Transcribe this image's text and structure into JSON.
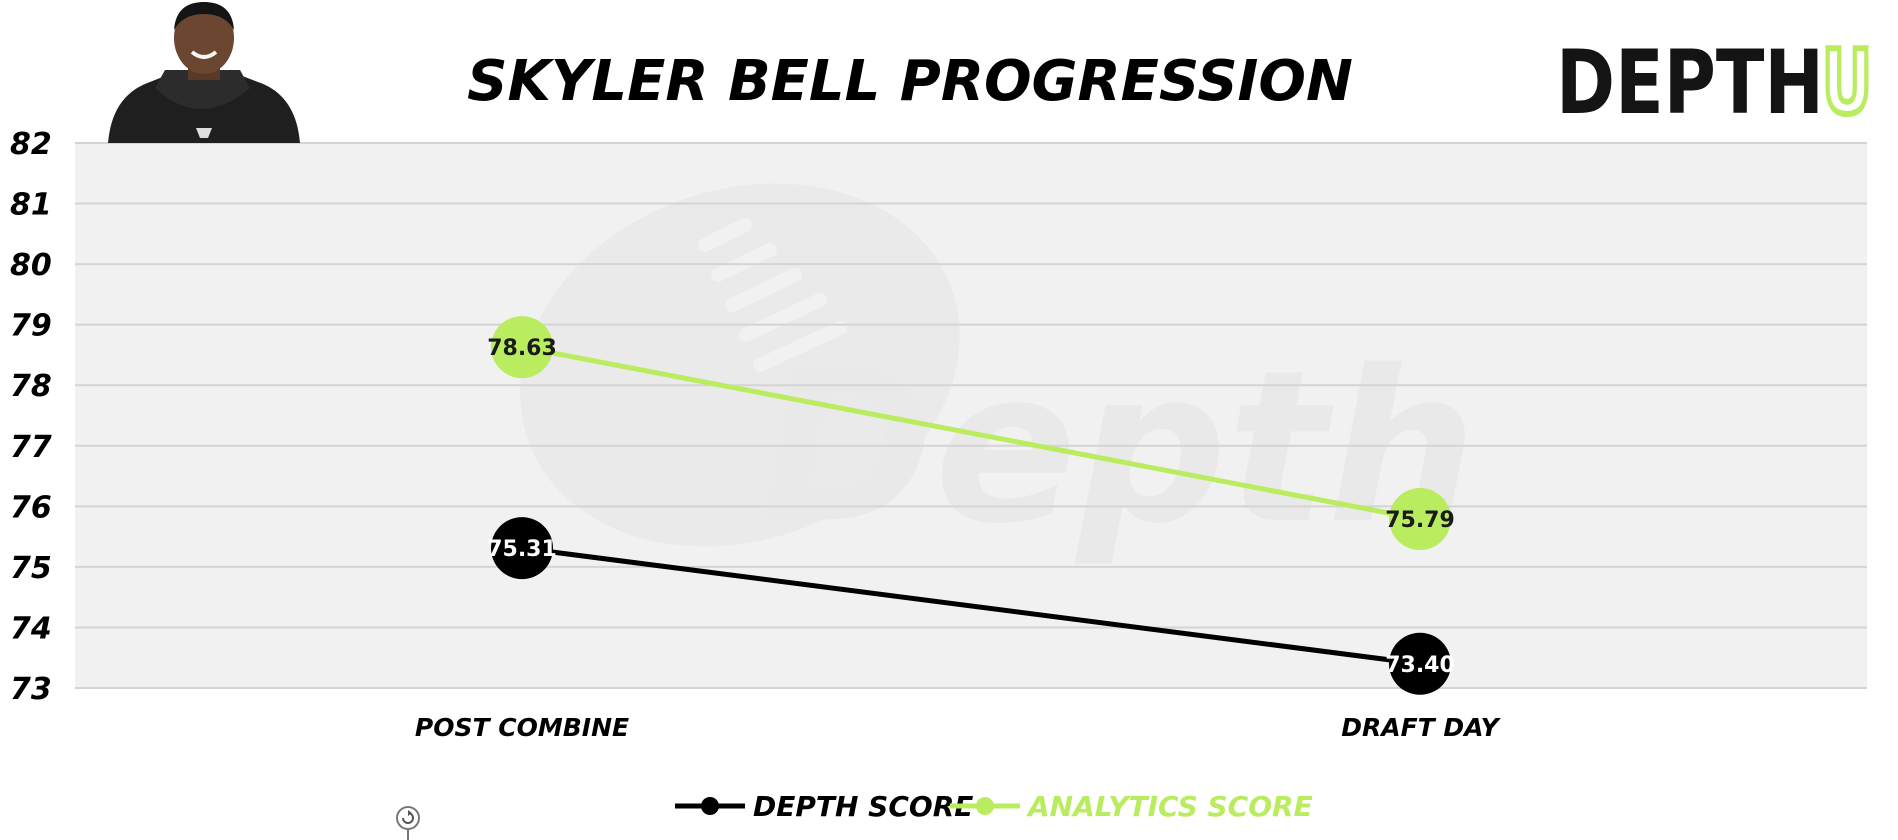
{
  "chart_data": {
    "type": "line",
    "title": "SKYLER BELL PROGRESSION",
    "categories": [
      "POST COMBINE",
      "DRAFT DAY"
    ],
    "ylim": [
      73,
      82
    ],
    "yticks": [
      82,
      81,
      80,
      79,
      78,
      77,
      76,
      75,
      74,
      73
    ],
    "grid": true,
    "legend_position": "bottom",
    "series": [
      {
        "name": "DEPTH SCORE",
        "values": [
          75.31,
          73.4
        ],
        "labels": [
          "75.31",
          "73.40"
        ],
        "color": "#000000",
        "label_color": "#ffffff"
      },
      {
        "name": "ANALYTICS SCORE",
        "values": [
          78.63,
          75.79
        ],
        "labels": [
          "78.63",
          "75.79"
        ],
        "color": "#b9ec5e",
        "label_color": "#1a1a1a"
      }
    ]
  },
  "logo": {
    "main": "DEPTH",
    "accent": "U",
    "main_color": "#141414",
    "accent_color": "#b9ec5e"
  },
  "watermark": {
    "text": "Depth"
  },
  "colors": {
    "plot_background": "#f1f1f1",
    "gridline": "#d4d4d4"
  }
}
